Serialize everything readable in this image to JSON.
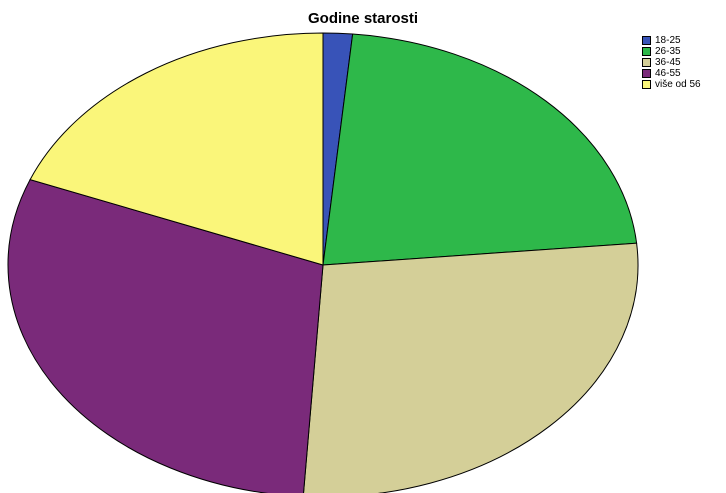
{
  "chart_data": {
    "type": "pie",
    "title": "Godine starosti",
    "legend_position": "top-right",
    "categories": [
      "18-25",
      "26-35",
      "36-45",
      "46-55",
      "više od 56"
    ],
    "values": [
      1.5,
      22.0,
      27.5,
      30.0,
      19.0
    ],
    "colors": [
      "#3853b8",
      "#2eb84a",
      "#d4cf98",
      "#7a2a7a",
      "#faf67a"
    ],
    "start_angle_deg": 0,
    "direction": "clockwise",
    "slice_edge_color": "#000000"
  }
}
